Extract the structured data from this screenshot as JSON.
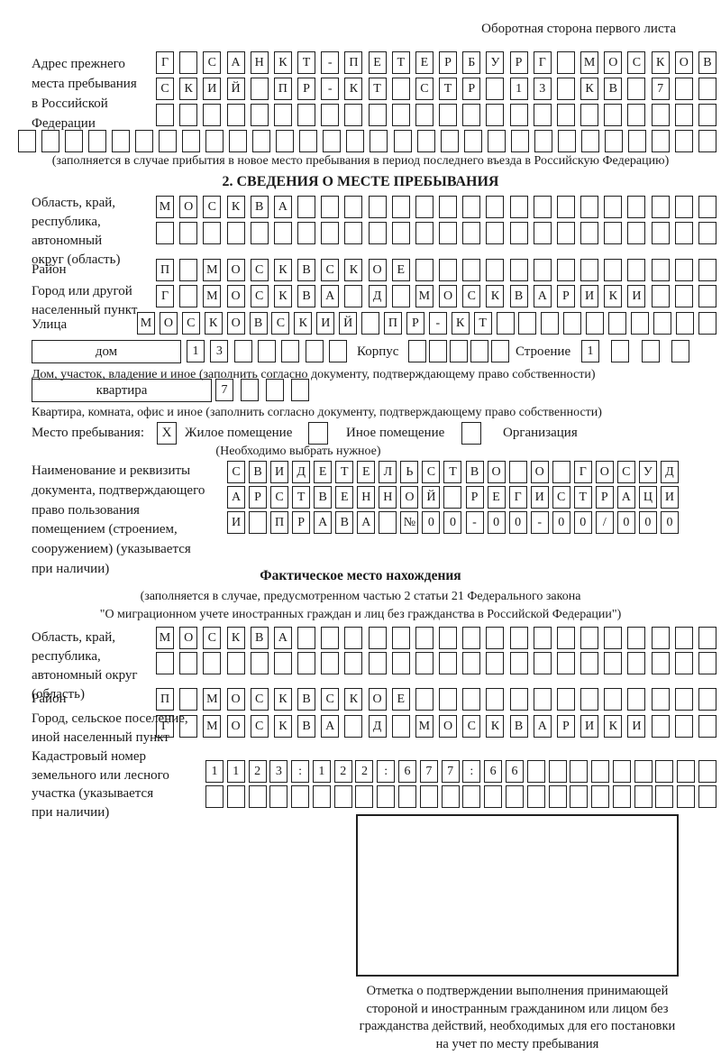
{
  "page": {
    "header_note": "Оборотная сторона первого листа"
  },
  "prev_address": {
    "label_lines": [
      "Адрес прежнего",
      "места пребывания",
      "в Российской",
      "Федерации"
    ],
    "rows": [
      {
        "text": "Г САНКТ-ПЕТЕРБУРГ МОСКОВ",
        "len": 24
      },
      {
        "text": "СКИЙ ПР-КТ СТР 13 КВ 7",
        "len": 24
      },
      {
        "text": "",
        "len": 24
      },
      {
        "text": "",
        "len": 30
      }
    ],
    "note": "(заполняется в случае прибытия в новое место пребывания в период последнего въезда в Российскую Федерацию)"
  },
  "section2": {
    "title": "2. СВЕДЕНИЯ О МЕСТЕ ПРЕБЫВАНИЯ",
    "region": {
      "label_lines": [
        "Область, край,",
        "республика,",
        "автономный",
        "округ (область)"
      ],
      "rows": [
        {
          "text": "МОСКВА",
          "len": 24
        },
        {
          "text": "",
          "len": 24
        }
      ]
    },
    "district": {
      "label": "Район",
      "row": {
        "text": "П МОСКВСКОЕ",
        "len": 24
      }
    },
    "city": {
      "label_lines": [
        "Город или другой",
        "населенный пункт"
      ],
      "row": {
        "text": "Г МОСКВА Д МОСКВАРИКИ",
        "len": 24
      }
    },
    "street": {
      "label": "Улица",
      "row": {
        "text": "МОСКОВСКИЙ ПР-КТ",
        "len": 26
      }
    },
    "house": {
      "box_label": "дом",
      "row": {
        "text": "13",
        "len": 7
      },
      "korpus_label": "Корпус",
      "korpus_row": {
        "text": "",
        "len": 5
      },
      "stroenie_label": "Строение",
      "stroenie_row": {
        "text": "1",
        "len": 4
      },
      "note": "Дом, участок, владение и иное (заполнить согласно документу, подтверждающему право собственности)"
    },
    "apartment": {
      "box_label": "квартира",
      "row": {
        "text": "7",
        "len": 4
      },
      "note": "Квартира, комната, офис и иное (заполнить согласно документу, подтверждающему право собственности)"
    },
    "stay_type": {
      "label": "Место пребывания:",
      "options": [
        {
          "label": "Жилое помещение",
          "checked": "X"
        },
        {
          "label": "Иное помещение",
          "checked": ""
        },
        {
          "label": "Организация",
          "checked": ""
        }
      ],
      "note": "(Необходимо выбрать нужное)"
    },
    "document": {
      "label_lines": [
        "Наименование и реквизиты",
        "документа, подтверждающего",
        "право пользования",
        "помещением (строением,",
        "сооружением) (указывается",
        "при наличии)"
      ],
      "rows": [
        {
          "text": "СВИДЕТЕЛЬСТВО О ГОСУД",
          "len": 21
        },
        {
          "text": "АРСТВЕННОЙ РЕГИСТРАЦИ",
          "len": 21
        },
        {
          "text": "И ПРАВА №00-00-00/000",
          "len": 21
        }
      ]
    }
  },
  "actual_location": {
    "title": "Фактическое место нахождения",
    "note_lines": [
      "(заполняется в случае, предусмотренном частью 2 статьи 21 Федерального закона",
      "\"О миграционном учете иностранных граждан и лиц без гражданства в Российской Федерации\")"
    ],
    "region": {
      "label_lines": [
        "Область, край,",
        "республика,",
        "автономный округ",
        "(область)"
      ],
      "rows": [
        {
          "text": "МОСКВА",
          "len": 24
        },
        {
          "text": "",
          "len": 24
        }
      ]
    },
    "district": {
      "label": "Район",
      "row": {
        "text": "П МОСКВСКОЕ",
        "len": 24
      }
    },
    "city": {
      "label_lines": [
        "Город, сельское поселение,",
        "иной населенный пункт"
      ],
      "row": {
        "text": "Г МОСКВА Д МОСКВАРИКИ",
        "len": 24
      }
    },
    "cadastre": {
      "label_lines": [
        "Кадастровый номер",
        "земельного или лесного",
        "участка (указывается",
        "при наличии)"
      ],
      "rows": [
        {
          "text": "1123:122:677:66",
          "len": 24
        },
        {
          "text": "",
          "len": 24
        }
      ]
    },
    "stamp_caption_lines": [
      "Отметка о подтверждении выполнения принимающей",
      "стороной и иностранным гражданином или лицом без",
      "гражданства действий, необходимых для его постановки",
      "на учет по месту пребывания"
    ]
  }
}
